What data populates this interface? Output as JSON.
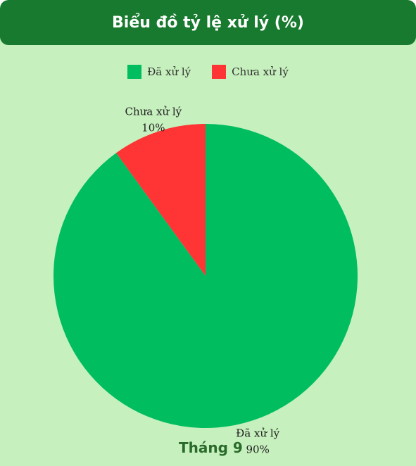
{
  "header": {
    "title": "Biểu đồ tỷ lệ xử lý (%)"
  },
  "chart_data": {
    "type": "pie",
    "title": "Biểu đồ tỷ lệ xử lý (%)",
    "categories": [
      "Đã xử lý",
      "Chưa xử lý"
    ],
    "values": [
      90,
      10
    ],
    "value_labels": [
      "90%",
      "10%"
    ],
    "colors": [
      "#00be5f",
      "#ff3434"
    ],
    "legend_placement": "top"
  },
  "legend": {
    "items": [
      {
        "label": "Đã xử lý",
        "color": "#00be5f"
      },
      {
        "label": "Chưa xử lý",
        "color": "#ff3434"
      }
    ]
  },
  "footer": {
    "label": "Tháng 9"
  }
}
